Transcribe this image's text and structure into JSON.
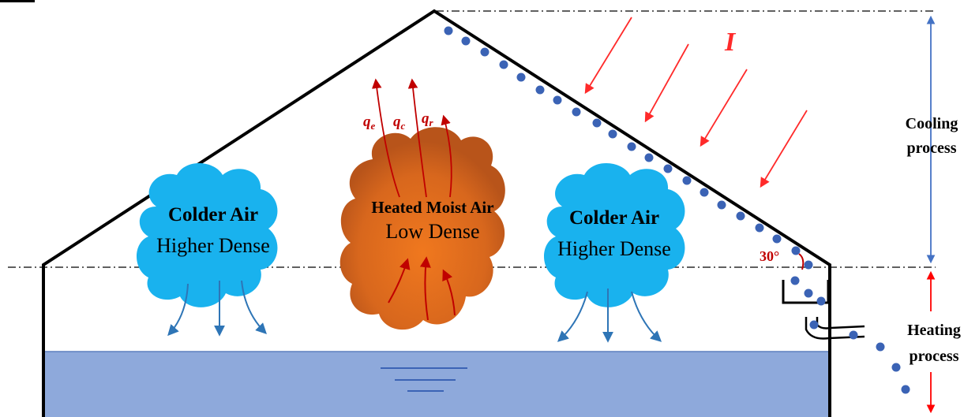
{
  "diagram": {
    "irradiance_symbol": "I",
    "left_cloud": {
      "line1": "Colder Air",
      "line2": "Higher Dense"
    },
    "center_cloud": {
      "line1": "Heated Moist Air",
      "line2": "Low Dense"
    },
    "right_cloud": {
      "line1": "Colder Air",
      "line2": "Higher Dense"
    },
    "heat_fluxes": [
      {
        "base": "q",
        "sub": "e"
      },
      {
        "base": "q",
        "sub": "c"
      },
      {
        "base": "q",
        "sub": "r"
      }
    ],
    "angle_label": "30°",
    "cooling_label": {
      "line1": "Cooling",
      "line2": "process"
    },
    "heating_label": {
      "line1": "Heating",
      "line2": "process"
    },
    "colors": {
      "cold_cloud": "#19b2ee",
      "hot_cloud": "#d9691c",
      "water": "#8ea9db",
      "droplet": "#3b63b5",
      "radiation_arrow": "#ff2a2a",
      "flux_arrow": "#c00000",
      "scale_arrow": "#4472c4",
      "heating_arrow": "#ff0000"
    }
  }
}
